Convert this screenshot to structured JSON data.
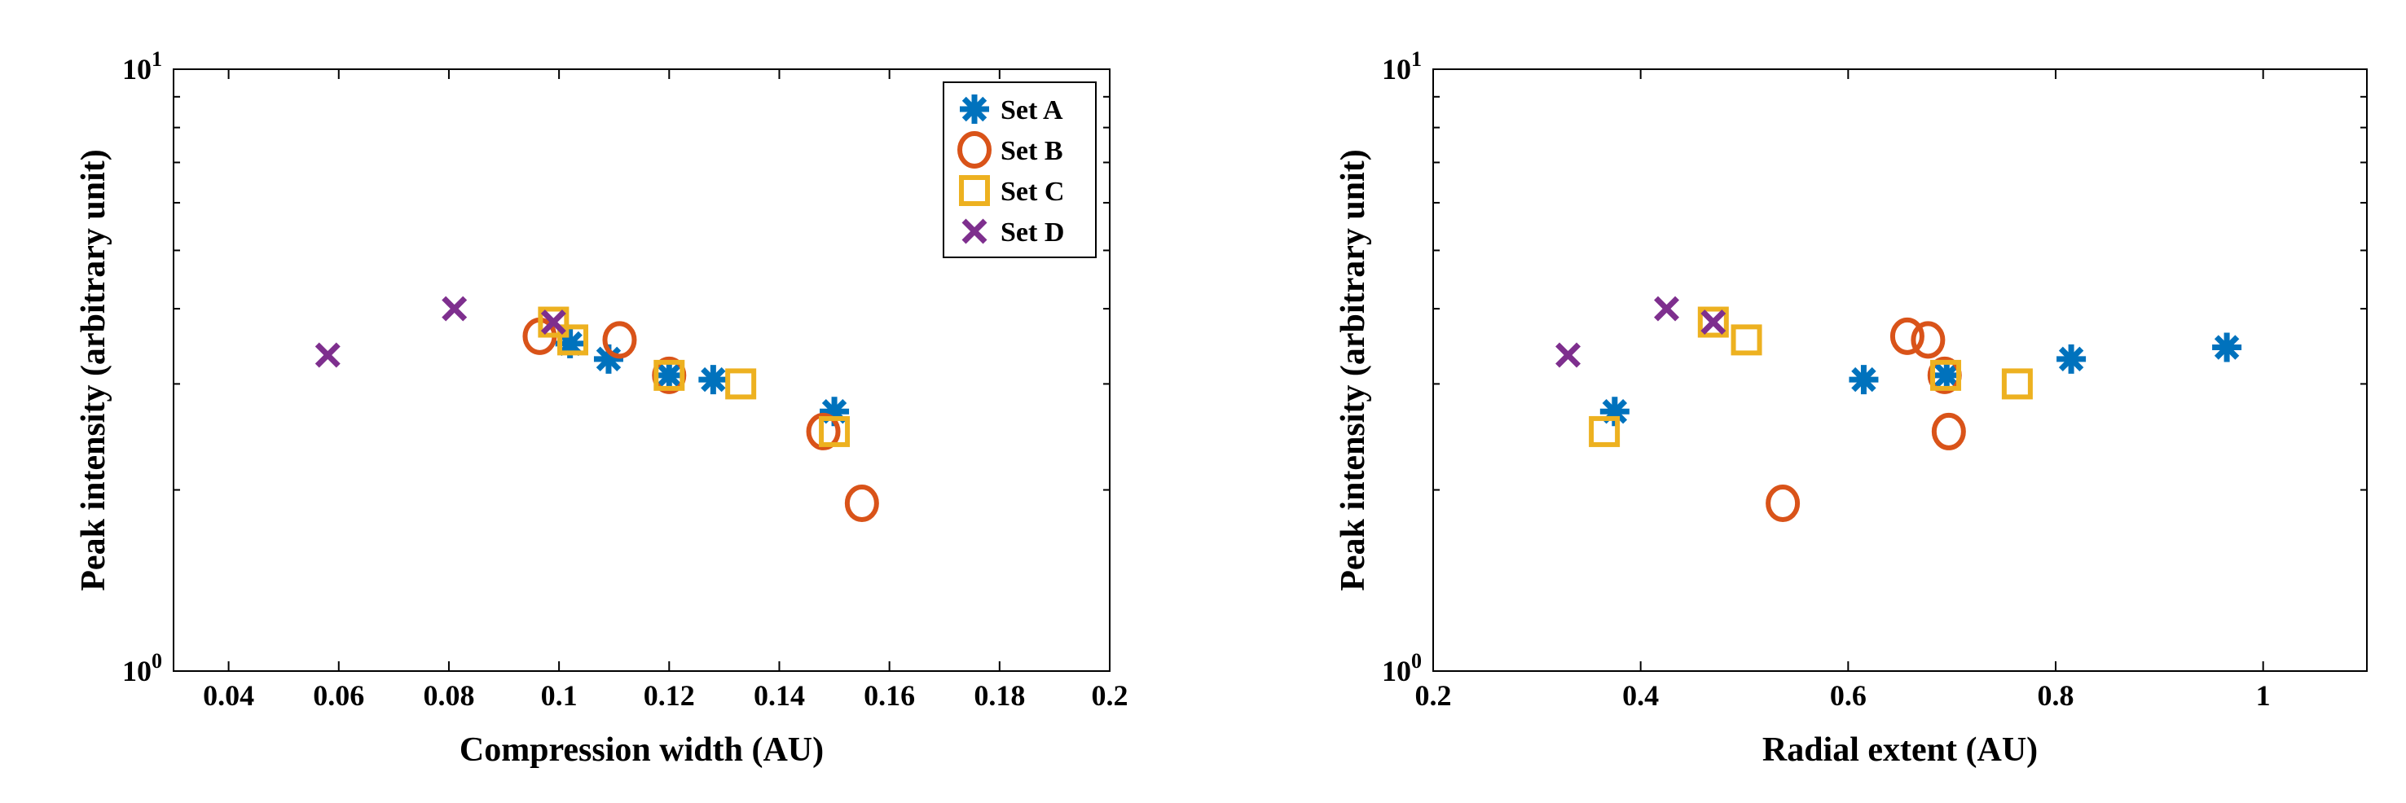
{
  "chart_data": [
    {
      "type": "scatter",
      "xlabel": "Compression width (AU)",
      "ylabel": "Peak intensity (arbitrary unit)",
      "xlim": [
        0.03,
        0.2
      ],
      "ylim": [
        1,
        10
      ],
      "yscale": "log",
      "xticks": [
        "0.04",
        "0.06",
        "0.08",
        "0.1",
        "0.12",
        "0.14",
        "0.16",
        "0.18",
        "0.2"
      ],
      "xtick_values": [
        0.04,
        0.06,
        0.08,
        0.1,
        0.12,
        0.14,
        0.16,
        0.18,
        0.2
      ],
      "yticks": [
        {
          "base": "10",
          "exp": "0",
          "value": 1
        },
        {
          "base": "10",
          "exp": "1",
          "value": 10
        }
      ],
      "legend": {
        "placement": "top-right",
        "entries": [
          "Set A",
          "Set B",
          "Set C",
          "Set D"
        ]
      },
      "series": [
        {
          "name": "Set A",
          "marker": "asterisk",
          "color": "#0072BD",
          "points": [
            [
              0.102,
              3.5
            ],
            [
              0.109,
              3.3
            ],
            [
              0.12,
              3.1
            ],
            [
              0.128,
              3.05
            ],
            [
              0.15,
              2.7
            ]
          ]
        },
        {
          "name": "Set B",
          "marker": "circle",
          "color": "#D95319",
          "points": [
            [
              0.0965,
              3.6
            ],
            [
              0.111,
              3.55
            ],
            [
              0.12,
              3.1
            ],
            [
              0.148,
              2.5
            ],
            [
              0.155,
              1.9
            ]
          ]
        },
        {
          "name": "Set C",
          "marker": "square",
          "color": "#EDB120",
          "points": [
            [
              0.099,
              3.8
            ],
            [
              0.1025,
              3.55
            ],
            [
              0.12,
              3.1
            ],
            [
              0.133,
              3.0
            ],
            [
              0.15,
              2.5
            ]
          ]
        },
        {
          "name": "Set D",
          "marker": "x",
          "color": "#7E2F8E",
          "points": [
            [
              0.058,
              3.35
            ],
            [
              0.081,
              4.0
            ],
            [
              0.099,
              3.8
            ]
          ]
        }
      ]
    },
    {
      "type": "scatter",
      "xlabel": "Radial extent (AU)",
      "ylabel": "Peak intensity (arbitrary unit)",
      "xlim": [
        0.2,
        1.1
      ],
      "ylim": [
        1,
        10
      ],
      "yscale": "log",
      "xticks": [
        "0.2",
        "0.4",
        "0.6",
        "0.8",
        "1"
      ],
      "xtick_values": [
        0.2,
        0.4,
        0.6,
        0.8,
        1.0
      ],
      "yticks": [
        {
          "base": "10",
          "exp": "0",
          "value": 1
        },
        {
          "base": "10",
          "exp": "1",
          "value": 10
        }
      ],
      "series": [
        {
          "name": "Set A",
          "marker": "asterisk",
          "color": "#0072BD",
          "points": [
            [
              0.375,
              2.7
            ],
            [
              0.615,
              3.05
            ],
            [
              0.695,
              3.1
            ],
            [
              0.815,
              3.3
            ],
            [
              0.965,
              3.45
            ]
          ]
        },
        {
          "name": "Set B",
          "marker": "circle",
          "color": "#D95319",
          "points": [
            [
              0.537,
              1.9
            ],
            [
              0.657,
              3.6
            ],
            [
              0.677,
              3.55
            ],
            [
              0.693,
              3.1
            ],
            [
              0.697,
              2.5
            ]
          ]
        },
        {
          "name": "Set C",
          "marker": "square",
          "color": "#EDB120",
          "points": [
            [
              0.365,
              2.5
            ],
            [
              0.47,
              3.8
            ],
            [
              0.502,
              3.55
            ],
            [
              0.694,
              3.1
            ],
            [
              0.763,
              3.0
            ]
          ]
        },
        {
          "name": "Set D",
          "marker": "x",
          "color": "#7E2F8E",
          "points": [
            [
              0.33,
              3.35
            ],
            [
              0.425,
              4.0
            ],
            [
              0.47,
              3.8
            ]
          ]
        }
      ]
    }
  ]
}
